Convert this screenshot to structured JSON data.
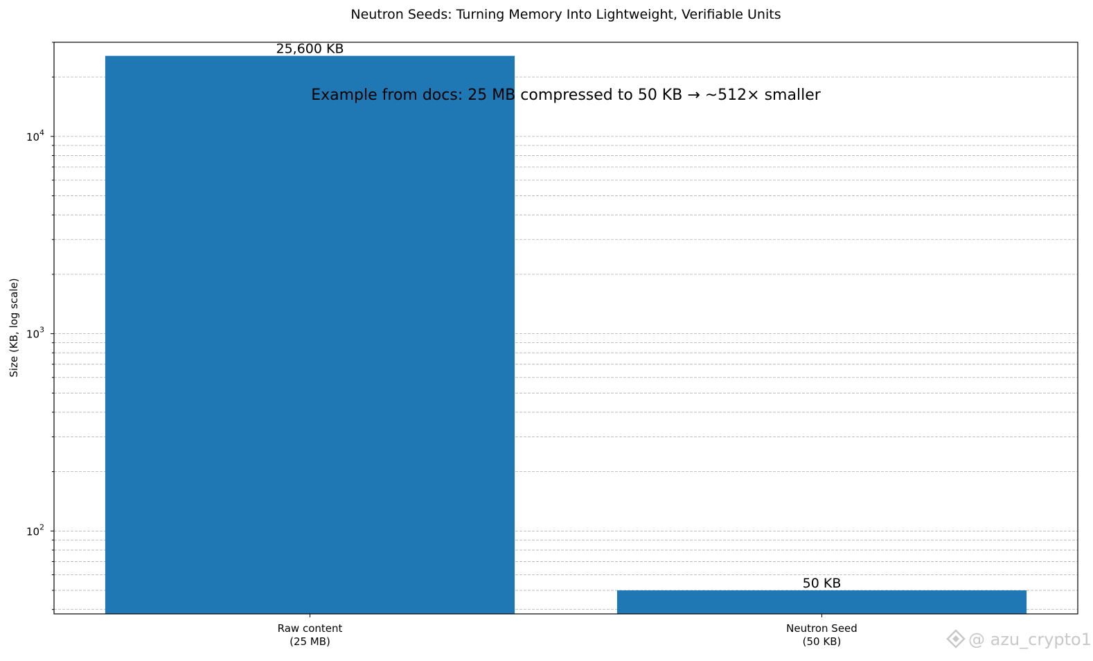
{
  "chart_data": {
    "type": "bar",
    "title": "Neutron Seeds: Turning Memory Into Lightweight, Verifiable Units",
    "annotation": "Example from docs: 25 MB compressed to 50 KB  →  ~512× smaller",
    "ylabel": "Size (KB, log scale)",
    "xlabel": "",
    "yscale": "log",
    "ylim": [
      38,
      30000
    ],
    "y_ticks": [
      {
        "value": 100,
        "base": "10",
        "exp": "2"
      },
      {
        "value": 1000,
        "base": "10",
        "exp": "3"
      },
      {
        "value": 10000,
        "base": "10",
        "exp": "4"
      }
    ],
    "grid": true,
    "categories": [
      [
        "Raw content",
        "(25 MB)"
      ],
      [
        "Neutron Seed",
        "(50 KB)"
      ]
    ],
    "values": [
      25600,
      50
    ],
    "data_labels": [
      "25,600 KB",
      "50 KB"
    ],
    "bar_color": "#1f77b4",
    "grid_color": "#b0b0b0"
  },
  "watermark": {
    "text": "@ azu_crypto1",
    "icon": "binance-logo-icon"
  }
}
